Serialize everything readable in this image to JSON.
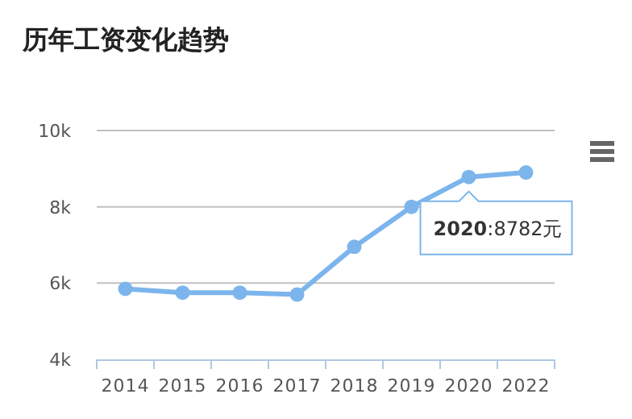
{
  "chart_data": {
    "type": "line",
    "title": "历年工资变化趋势",
    "categories": [
      "2014",
      "2015",
      "2016",
      "2017",
      "2018",
      "2019",
      "2020",
      "2022"
    ],
    "series": [
      {
        "color": "#7cb5ec",
        "values": [
          5850,
          5750,
          5750,
          5700,
          6950,
          8000,
          8782,
          8900
        ]
      }
    ],
    "ylim": [
      4000,
      10000
    ],
    "yticks": [
      {
        "value": 4000,
        "label": "4k"
      },
      {
        "value": 6000,
        "label": "6k"
      },
      {
        "value": 8000,
        "label": "8k"
      },
      {
        "value": 10000,
        "label": "10k"
      }
    ],
    "grid": "y",
    "marker": "circle",
    "line_style": "solid",
    "annotations": [
      {
        "text": "**2020**:8782元",
        "x": "2020",
        "y": 8782
      }
    ]
  }
}
